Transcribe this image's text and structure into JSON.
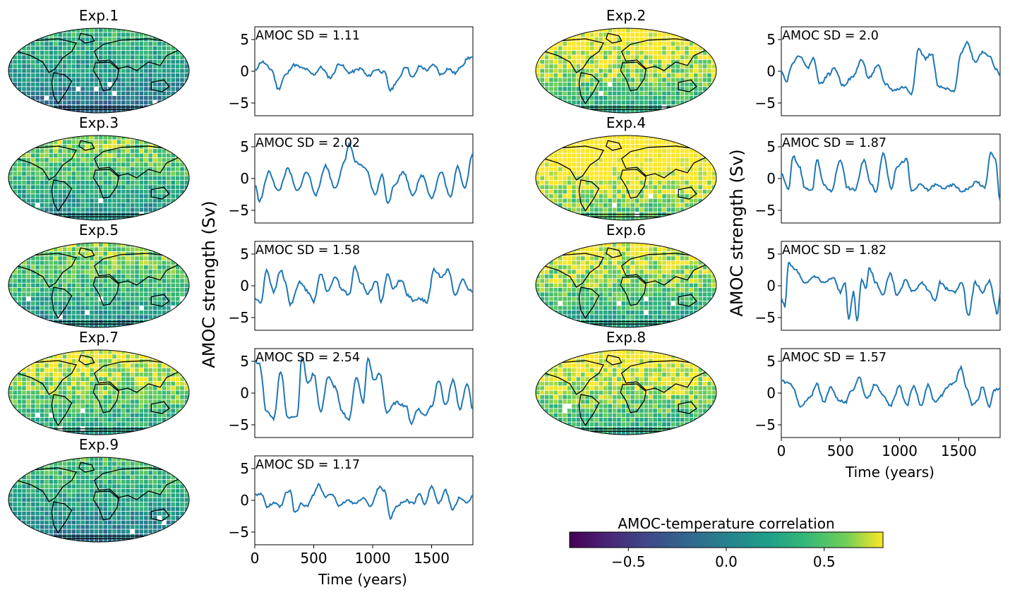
{
  "figure": {
    "ylabel": "AMOC strength (Sv)",
    "xlabel": "Time (years)",
    "sd_prefix": "AMOC  SD = ",
    "colorbar": {
      "title": "AMOC-temperature correlation",
      "range": [
        -0.8,
        0.8
      ],
      "ticks": [
        -0.5,
        0.0,
        0.5
      ],
      "tick_labels": [
        "−0.5",
        "0.0",
        "0.5"
      ],
      "colormap": "viridis"
    },
    "colors": {
      "line": "#1f77b4",
      "axis": "#000000",
      "map_edge": "#000000"
    }
  },
  "chart_data": [
    {
      "type": "line",
      "title": "Exp.1",
      "sd": "1.11",
      "ylim": [
        -7,
        7
      ],
      "yticks": [
        -5,
        0,
        5
      ],
      "xlim": [
        0,
        1850
      ],
      "xticks": [
        0,
        500,
        1000,
        1500
      ],
      "seed": 11,
      "map_bias": 0.05,
      "anchors": [
        [
          0,
          0.2
        ],
        [
          60,
          1.5
        ],
        [
          140,
          0.3
        ],
        [
          200,
          -2.8
        ],
        [
          260,
          -0.6
        ],
        [
          330,
          1.0
        ],
        [
          420,
          0.4
        ],
        [
          500,
          -0.5
        ],
        [
          560,
          0.6
        ],
        [
          640,
          -1.0
        ],
        [
          720,
          1.2
        ],
        [
          800,
          -0.2
        ],
        [
          900,
          0.4
        ],
        [
          960,
          -0.8
        ],
        [
          1030,
          0.3
        ],
        [
          1100,
          -0.2
        ],
        [
          1150,
          -3.0
        ],
        [
          1210,
          -1.5
        ],
        [
          1280,
          0.8
        ],
        [
          1340,
          -1.0
        ],
        [
          1400,
          0.8
        ],
        [
          1460,
          0.2
        ],
        [
          1520,
          1.0
        ],
        [
          1580,
          -0.5
        ],
        [
          1640,
          0.4
        ],
        [
          1700,
          -0.3
        ],
        [
          1760,
          1.0
        ],
        [
          1810,
          2.1
        ],
        [
          1850,
          2.2
        ]
      ]
    },
    {
      "type": "line",
      "title": "Exp.2",
      "sd": "2.0",
      "ylim": [
        -7,
        7
      ],
      "yticks": [
        -5,
        0,
        5
      ],
      "xlim": [
        0,
        1850
      ],
      "xticks": [
        0,
        500,
        1000,
        1500
      ],
      "seed": 22,
      "map_bias": 0.35,
      "anchors": [
        [
          0,
          0.2
        ],
        [
          40,
          -1.6
        ],
        [
          100,
          1.5
        ],
        [
          160,
          2.5
        ],
        [
          220,
          0.5
        ],
        [
          270,
          2.0
        ],
        [
          330,
          -2.0
        ],
        [
          400,
          -0.5
        ],
        [
          450,
          0.5
        ],
        [
          520,
          -2.2
        ],
        [
          600,
          -1.0
        ],
        [
          680,
          1.8
        ],
        [
          740,
          -1.0
        ],
        [
          820,
          0.8
        ],
        [
          880,
          -2.0
        ],
        [
          950,
          -3.0
        ],
        [
          1040,
          -2.5
        ],
        [
          1100,
          -3.5
        ],
        [
          1160,
          3.5
        ],
        [
          1220,
          2.0
        ],
        [
          1270,
          2.8
        ],
        [
          1330,
          -2.5
        ],
        [
          1400,
          -2.8
        ],
        [
          1460,
          -3.3
        ],
        [
          1520,
          3.0
        ],
        [
          1570,
          4.5
        ],
        [
          1640,
          1.5
        ],
        [
          1700,
          3.0
        ],
        [
          1760,
          2.5
        ],
        [
          1820,
          0.2
        ],
        [
          1850,
          -0.8
        ]
      ]
    },
    {
      "type": "line",
      "title": "Exp.3",
      "sd": "2.02",
      "ylim": [
        -7,
        7
      ],
      "yticks": [
        -5,
        0,
        5
      ],
      "xlim": [
        0,
        1850
      ],
      "xticks": [
        0,
        500,
        1000,
        1500
      ],
      "seed": 33,
      "map_bias": 0.2,
      "anchors": [
        [
          0,
          -1.0
        ],
        [
          40,
          -3.5
        ],
        [
          120,
          1.0
        ],
        [
          200,
          -2.0
        ],
        [
          280,
          1.5
        ],
        [
          360,
          -2.0
        ],
        [
          440,
          1.0
        ],
        [
          520,
          -2.5
        ],
        [
          600,
          2.0
        ],
        [
          680,
          -1.5
        ],
        [
          760,
          2.5
        ],
        [
          800,
          5.5
        ],
        [
          860,
          2.5
        ],
        [
          940,
          1.5
        ],
        [
          1020,
          -2.5
        ],
        [
          1080,
          0.5
        ],
        [
          1130,
          -4.0
        ],
        [
          1180,
          -1.0
        ],
        [
          1260,
          1.0
        ],
        [
          1340,
          -2.5
        ],
        [
          1420,
          0.5
        ],
        [
          1500,
          -3.0
        ],
        [
          1580,
          1.0
        ],
        [
          1660,
          -3.0
        ],
        [
          1720,
          2.0
        ],
        [
          1780,
          -1.5
        ],
        [
          1850,
          4.0
        ]
      ]
    },
    {
      "type": "line",
      "title": "Exp.4",
      "sd": "1.87",
      "ylim": [
        -7,
        7
      ],
      "yticks": [
        -5,
        0,
        5
      ],
      "xlim": [
        0,
        1850
      ],
      "xticks": [
        0,
        500,
        1000,
        1500
      ],
      "seed": 44,
      "map_bias": 0.45,
      "anchors": [
        [
          0,
          0.8
        ],
        [
          60,
          -1.8
        ],
        [
          100,
          3.5
        ],
        [
          150,
          2.0
        ],
        [
          200,
          -1.5
        ],
        [
          260,
          -2.0
        ],
        [
          300,
          3.0
        ],
        [
          360,
          -1.0
        ],
        [
          420,
          -2.0
        ],
        [
          500,
          3.0
        ],
        [
          560,
          -1.5
        ],
        [
          620,
          -1.8
        ],
        [
          700,
          2.8
        ],
        [
          760,
          -1.0
        ],
        [
          800,
          -2.0
        ],
        [
          860,
          4.0
        ],
        [
          930,
          -1.5
        ],
        [
          980,
          2.0
        ],
        [
          1060,
          3.0
        ],
        [
          1100,
          -2.0
        ],
        [
          1180,
          -1.0
        ],
        [
          1240,
          -1.8
        ],
        [
          1300,
          -1.0
        ],
        [
          1380,
          -1.5
        ],
        [
          1460,
          -1.0
        ],
        [
          1520,
          -2.0
        ],
        [
          1580,
          -1.6
        ],
        [
          1650,
          -0.5
        ],
        [
          1720,
          -1.5
        ],
        [
          1770,
          4.0
        ],
        [
          1810,
          3.0
        ],
        [
          1850,
          -3.5
        ]
      ]
    },
    {
      "type": "line",
      "title": "Exp.5",
      "sd": "1.58",
      "ylim": [
        -7,
        7
      ],
      "yticks": [
        -5,
        0,
        5
      ],
      "xlim": [
        0,
        1850
      ],
      "xticks": [
        0,
        500,
        1000,
        1500
      ],
      "seed": 55,
      "map_bias": 0.2,
      "anchors": [
        [
          0,
          -2.0
        ],
        [
          50,
          -2.7
        ],
        [
          100,
          2.5
        ],
        [
          160,
          -1.0
        ],
        [
          220,
          2.5
        ],
        [
          260,
          0.5
        ],
        [
          300,
          -3.0
        ],
        [
          380,
          0.5
        ],
        [
          460,
          -1.0
        ],
        [
          500,
          -2.5
        ],
        [
          560,
          2.0
        ],
        [
          620,
          -1.0
        ],
        [
          680,
          1.5
        ],
        [
          740,
          -0.5
        ],
        [
          800,
          -1.5
        ],
        [
          850,
          3.0
        ],
        [
          900,
          0.5
        ],
        [
          960,
          -1.2
        ],
        [
          1030,
          0.8
        ],
        [
          1070,
          -2.5
        ],
        [
          1130,
          2.0
        ],
        [
          1170,
          -0.5
        ],
        [
          1240,
          1.0
        ],
        [
          1300,
          -1.5
        ],
        [
          1350,
          -2.5
        ],
        [
          1400,
          -2.0
        ],
        [
          1460,
          -2.6
        ],
        [
          1520,
          2.5
        ],
        [
          1580,
          1.5
        ],
        [
          1640,
          2.5
        ],
        [
          1700,
          -1.5
        ],
        [
          1760,
          1.0
        ],
        [
          1810,
          -0.5
        ],
        [
          1850,
          -1.0
        ]
      ]
    },
    {
      "type": "line",
      "title": "Exp.6",
      "sd": "1.82",
      "ylim": [
        -7,
        7
      ],
      "yticks": [
        -5,
        0,
        5
      ],
      "xlim": [
        0,
        1850
      ],
      "xticks": [
        0,
        500,
        1000,
        1500
      ],
      "seed": 66,
      "map_bias": 0.3,
      "anchors": [
        [
          0,
          -2.0
        ],
        [
          30,
          -3.3
        ],
        [
          60,
          3.5
        ],
        [
          120,
          2.5
        ],
        [
          200,
          0.3
        ],
        [
          280,
          1.5
        ],
        [
          360,
          0.5
        ],
        [
          440,
          1.2
        ],
        [
          500,
          -1.0
        ],
        [
          540,
          0.5
        ],
        [
          570,
          -5.5
        ],
        [
          610,
          -1.0
        ],
        [
          640,
          -5.5
        ],
        [
          680,
          1.0
        ],
        [
          720,
          -0.5
        ],
        [
          740,
          3.0
        ],
        [
          800,
          0.5
        ],
        [
          860,
          -1.5
        ],
        [
          920,
          2.0
        ],
        [
          980,
          -1.5
        ],
        [
          1050,
          0.8
        ],
        [
          1120,
          -1.0
        ],
        [
          1180,
          0.5
        ],
        [
          1240,
          -0.5
        ],
        [
          1300,
          -2.5
        ],
        [
          1340,
          0.5
        ],
        [
          1400,
          -0.5
        ],
        [
          1460,
          -1.0
        ],
        [
          1530,
          0.5
        ],
        [
          1580,
          -4.8
        ],
        [
          1640,
          0.5
        ],
        [
          1700,
          -1.0
        ],
        [
          1760,
          0.8
        ],
        [
          1830,
          -4.5
        ],
        [
          1850,
          -1.0
        ]
      ]
    },
    {
      "type": "line",
      "title": "Exp.7",
      "sd": "2.54",
      "ylim": [
        -7,
        7
      ],
      "yticks": [
        -5,
        0,
        5
      ],
      "xlim": [
        0,
        1850
      ],
      "xticks": [
        0,
        500,
        1000,
        1500
      ],
      "seed": 77,
      "map_bias": 0.3,
      "anchors": [
        [
          0,
          5.0
        ],
        [
          40,
          4.5
        ],
        [
          100,
          -3.0
        ],
        [
          160,
          -4.0
        ],
        [
          220,
          3.5
        ],
        [
          280,
          -4.0
        ],
        [
          360,
          -3.5
        ],
        [
          400,
          5.8
        ],
        [
          450,
          1.5
        ],
        [
          500,
          3.0
        ],
        [
          560,
          -3.0
        ],
        [
          620,
          2.5
        ],
        [
          680,
          1.0
        ],
        [
          740,
          -3.0
        ],
        [
          800,
          -4.2
        ],
        [
          860,
          2.5
        ],
        [
          920,
          -1.5
        ],
        [
          960,
          5.5
        ],
        [
          1010,
          2.0
        ],
        [
          1060,
          3.0
        ],
        [
          1120,
          -3.0
        ],
        [
          1200,
          -1.5
        ],
        [
          1280,
          -2.0
        ],
        [
          1330,
          -4.8
        ],
        [
          1380,
          -2.5
        ],
        [
          1440,
          -3.5
        ],
        [
          1500,
          -2.0
        ],
        [
          1560,
          2.0
        ],
        [
          1620,
          -2.0
        ],
        [
          1680,
          2.0
        ],
        [
          1740,
          -2.5
        ],
        [
          1800,
          1.5
        ],
        [
          1850,
          -2.5
        ]
      ]
    },
    {
      "type": "line",
      "title": "Exp.8",
      "sd": "1.57",
      "ylim": [
        -7,
        7
      ],
      "yticks": [
        -5,
        0,
        5
      ],
      "xlim": [
        0,
        1850
      ],
      "xticks": [
        0,
        500,
        1000,
        1500
      ],
      "seed": 88,
      "map_bias": 0.35,
      "anchors": [
        [
          0,
          2.0
        ],
        [
          60,
          1.5
        ],
        [
          100,
          1.0
        ],
        [
          160,
          -2.2
        ],
        [
          240,
          -0.8
        ],
        [
          300,
          1.5
        ],
        [
          360,
          -1.5
        ],
        [
          420,
          1.0
        ],
        [
          480,
          -1.0
        ],
        [
          540,
          -1.5
        ],
        [
          600,
          0.5
        ],
        [
          660,
          2.5
        ],
        [
          720,
          -1.0
        ],
        [
          800,
          1.5
        ],
        [
          860,
          -0.5
        ],
        [
          920,
          -2.0
        ],
        [
          1000,
          1.0
        ],
        [
          1060,
          -2.0
        ],
        [
          1120,
          1.2
        ],
        [
          1180,
          -2.0
        ],
        [
          1240,
          1.2
        ],
        [
          1300,
          -1.5
        ],
        [
          1350,
          -0.5
        ],
        [
          1400,
          1.0
        ],
        [
          1460,
          1.5
        ],
        [
          1520,
          4.0
        ],
        [
          1560,
          1.0
        ],
        [
          1620,
          -2.0
        ],
        [
          1660,
          -1.0
        ],
        [
          1700,
          1.0
        ],
        [
          1760,
          -2.0
        ],
        [
          1800,
          0.5
        ],
        [
          1850,
          0.8
        ]
      ]
    },
    {
      "type": "line",
      "title": "Exp.9",
      "sd": "1.17",
      "ylim": [
        -7,
        7
      ],
      "yticks": [
        -5,
        0,
        5
      ],
      "xlim": [
        0,
        1850
      ],
      "xticks": [
        0,
        500,
        1000,
        1500
      ],
      "seed": 99,
      "map_bias": 0.1,
      "anchors": [
        [
          0,
          1.0
        ],
        [
          60,
          1.0
        ],
        [
          100,
          -1.0
        ],
        [
          160,
          -0.5
        ],
        [
          220,
          -1.0
        ],
        [
          270,
          1.2
        ],
        [
          300,
          1.5
        ],
        [
          340,
          -2.0
        ],
        [
          400,
          -0.5
        ],
        [
          440,
          -1.0
        ],
        [
          500,
          1.0
        ],
        [
          540,
          2.5
        ],
        [
          600,
          0.5
        ],
        [
          660,
          1.0
        ],
        [
          720,
          -1.0
        ],
        [
          780,
          0.0
        ],
        [
          860,
          -0.5
        ],
        [
          920,
          0.5
        ],
        [
          980,
          -1.0
        ],
        [
          1060,
          2.2
        ],
        [
          1100,
          1.5
        ],
        [
          1150,
          -2.8
        ],
        [
          1200,
          -1.0
        ],
        [
          1280,
          0.0
        ],
        [
          1340,
          -0.5
        ],
        [
          1400,
          1.0
        ],
        [
          1440,
          -0.5
        ],
        [
          1500,
          2.2
        ],
        [
          1560,
          -0.5
        ],
        [
          1620,
          1.5
        ],
        [
          1680,
          -1.5
        ],
        [
          1740,
          0.5
        ],
        [
          1800,
          -0.5
        ],
        [
          1850,
          0.8
        ]
      ]
    }
  ]
}
